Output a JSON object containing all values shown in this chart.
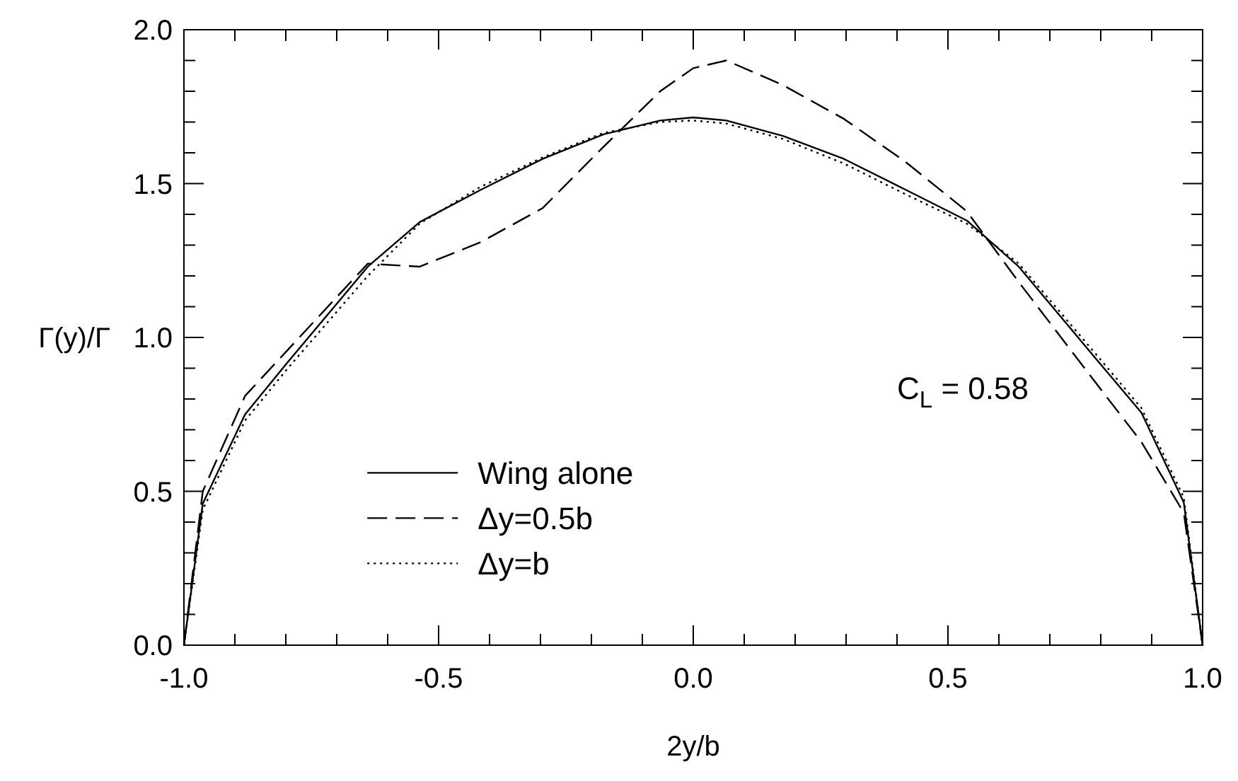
{
  "chart_data": {
    "type": "line",
    "xlabel": "2y/b",
    "ylabel": "Γ(y)/Γ",
    "annotations": [
      "C$_{L}$ = 0.58"
    ],
    "xlim": [
      -1,
      1
    ],
    "ylim": [
      0,
      2
    ],
    "xticks": [
      {
        "value": -1,
        "label": "-1.0"
      },
      {
        "value": -0.9,
        "label": null
      },
      {
        "value": -0.8,
        "label": null
      },
      {
        "value": -0.7,
        "label": null
      },
      {
        "value": -0.6,
        "label": null
      },
      {
        "value": -0.5,
        "label": "-0.5"
      },
      {
        "value": -0.4,
        "label": null
      },
      {
        "value": -0.3,
        "label": null
      },
      {
        "value": -0.2,
        "label": null
      },
      {
        "value": -0.1,
        "label": null
      },
      {
        "value": 0,
        "label": "0.0"
      },
      {
        "value": 0.1,
        "label": null
      },
      {
        "value": 0.2,
        "label": null
      },
      {
        "value": 0.3,
        "label": null
      },
      {
        "value": 0.4,
        "label": null
      },
      {
        "value": 0.5,
        "label": "0.5"
      },
      {
        "value": 0.6,
        "label": null
      },
      {
        "value": 0.7,
        "label": null
      },
      {
        "value": 0.8,
        "label": null
      },
      {
        "value": 0.9,
        "label": null
      },
      {
        "value": 1,
        "label": "1.0"
      }
    ],
    "yticks": [
      {
        "value": 0,
        "label": "0.0"
      },
      {
        "value": 0.1,
        "label": null
      },
      {
        "value": 0.2,
        "label": null
      },
      {
        "value": 0.3,
        "label": null
      },
      {
        "value": 0.4,
        "label": null
      },
      {
        "value": 0.5,
        "label": "0.5"
      },
      {
        "value": 0.6,
        "label": null
      },
      {
        "value": 0.7,
        "label": null
      },
      {
        "value": 0.8,
        "label": null
      },
      {
        "value": 0.9,
        "label": null
      },
      {
        "value": 1,
        "label": "1.0"
      },
      {
        "value": 1.1,
        "label": null
      },
      {
        "value": 1.2,
        "label": null
      },
      {
        "value": 1.3,
        "label": null
      },
      {
        "value": 1.4,
        "label": null
      },
      {
        "value": 1.5,
        "label": "1.5"
      },
      {
        "value": 1.6,
        "label": null
      },
      {
        "value": 1.7,
        "label": null
      },
      {
        "value": 1.8,
        "label": null
      },
      {
        "value": 1.9,
        "label": null
      },
      {
        "value": 2,
        "label": "2.0"
      }
    ],
    "grid": false,
    "legend": "bottom left",
    "series": [
      {
        "name": "Wing alone",
        "color": "#000000",
        "line_style": "solid",
        "x": [
          -1,
          -0.963,
          -0.88,
          -0.796,
          -0.639,
          -0.537,
          -0.417,
          -0.296,
          -0.176,
          -0.065,
          0,
          0.065,
          0.176,
          0.296,
          0.417,
          0.537,
          0.639,
          0.796,
          0.88,
          0.963,
          1
        ],
        "values": [
          0,
          0.46,
          0.75,
          0.92,
          1.23,
          1.375,
          1.48,
          1.58,
          1.66,
          1.705,
          1.715,
          1.705,
          1.655,
          1.58,
          1.48,
          1.38,
          1.23,
          0.92,
          0.755,
          0.464,
          0
        ]
      },
      {
        "name": "Δy=0.5b",
        "color": "#000000",
        "line_style": "dashed",
        "x": [
          -1,
          -0.963,
          -0.88,
          -0.639,
          -0.537,
          -0.417,
          -0.296,
          -0.176,
          -0.065,
          0,
          0.065,
          0.176,
          0.296,
          0.417,
          0.537,
          0.639,
          0.796,
          0.88,
          0.963,
          1
        ],
        "values": [
          0,
          0.5,
          0.81,
          1.24,
          1.23,
          1.31,
          1.42,
          1.62,
          1.8,
          1.875,
          1.9,
          1.82,
          1.71,
          1.57,
          1.41,
          1.18,
          0.84,
          0.66,
          0.43,
          0
        ]
      },
      {
        "name": "Δy=b",
        "color": "#000000",
        "line_style": "dotted",
        "x": [
          -1,
          -0.963,
          -0.88,
          -0.796,
          -0.639,
          -0.537,
          -0.417,
          -0.296,
          -0.176,
          -0.065,
          0,
          0.065,
          0.176,
          0.296,
          0.417,
          0.537,
          0.639,
          0.796,
          0.88,
          0.963,
          1
        ],
        "values": [
          0,
          0.44,
          0.73,
          0.9,
          1.2,
          1.37,
          1.49,
          1.585,
          1.665,
          1.7,
          1.705,
          1.695,
          1.645,
          1.565,
          1.465,
          1.37,
          1.24,
          0.935,
          0.77,
          0.48,
          0
        ]
      }
    ]
  }
}
